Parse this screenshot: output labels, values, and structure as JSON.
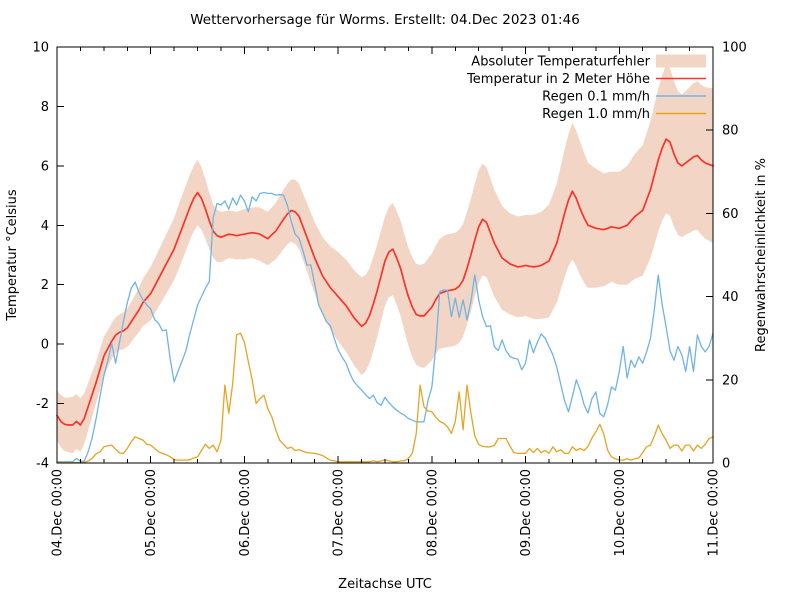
{
  "chart_data": {
    "type": "line",
    "title": "Wettervorhersage für Worms. Erstellt: 04.Dec 2023 01:46",
    "xlabel": "Zeitachse UTC",
    "ylabel_left": "Temperatur °Celsius",
    "ylabel_right": "Regenwahrscheinlichkeit in %",
    "grid": false,
    "legend_position": "top-right-inside",
    "background_color": "#ffffff",
    "axis_color": "#000000",
    "x_axis": {
      "total_hours": 168,
      "major_tick_hours": 24,
      "minor_tick_hours": 6,
      "tick_labels": [
        "04.Dec 00:00",
        "05.Dec 00:00",
        "06.Dec 00:00",
        "07.Dec 00:00",
        "08.Dec 00:00",
        "09.Dec 00:00",
        "10.Dec 00:00",
        "11.Dec 00:00"
      ]
    },
    "y_left_range": [
      -4,
      10
    ],
    "y_left_ticks": [
      -4,
      -2,
      0,
      2,
      4,
      6,
      8,
      10
    ],
    "y_right_range": [
      0,
      100
    ],
    "y_right_ticks": [
      0,
      20,
      40,
      60,
      80,
      100
    ],
    "series": [
      {
        "name": "Absoluter Temperaturfehler",
        "type": "band",
        "axis": "left",
        "color": "#f3d5c5",
        "center_series": "Temperatur in 2 Meter Höhe",
        "half_width_hourly": [
          0.85,
          0.88,
          0.9,
          0.92,
          0.95,
          0.92,
          0.9,
          0.85,
          0.8,
          0.75,
          0.7,
          0.68,
          0.65,
          0.62,
          0.6,
          0.6,
          0.6,
          0.62,
          0.65,
          0.68,
          0.7,
          0.75,
          0.8,
          0.85,
          0.9,
          0.92,
          0.95,
          0.98,
          1.0,
          1.02,
          1.05,
          1.08,
          1.1,
          1.1,
          1.1,
          1.1,
          1.1,
          1.05,
          1.0,
          0.95,
          0.9,
          0.88,
          0.85,
          0.82,
          0.8,
          0.8,
          0.8,
          0.82,
          0.85,
          0.85,
          0.85,
          0.88,
          0.9,
          0.9,
          0.9,
          0.92,
          0.95,
          0.98,
          1.0,
          1.02,
          1.05,
          1.08,
          1.1,
          1.12,
          1.15,
          1.18,
          1.2,
          1.25,
          1.3,
          1.35,
          1.4,
          1.45,
          1.5,
          1.52,
          1.55,
          1.58,
          1.6,
          1.62,
          1.65,
          1.62,
          1.6,
          1.58,
          1.55,
          1.52,
          1.5,
          1.52,
          1.55,
          1.58,
          1.6,
          1.62,
          1.65,
          1.68,
          1.7,
          1.72,
          1.75,
          1.78,
          1.8,
          1.82,
          1.85,
          1.88,
          1.9,
          1.9,
          1.9,
          1.9,
          1.9,
          1.9,
          1.9,
          1.88,
          1.9,
          1.88,
          1.85,
          1.82,
          1.8,
          1.78,
          1.75,
          1.72,
          1.7,
          1.7,
          1.7,
          1.7,
          1.7,
          1.72,
          1.75,
          1.78,
          1.8,
          1.85,
          1.9,
          1.95,
          2.0,
          2.08,
          2.15,
          2.22,
          2.3,
          2.28,
          2.25,
          2.18,
          2.1,
          2.05,
          2.0,
          1.95,
          1.9,
          1.88,
          1.85,
          1.88,
          1.9,
          1.95,
          2.0,
          2.05,
          2.1,
          2.15,
          2.2,
          2.25,
          2.3,
          2.35,
          2.4,
          2.45,
          2.5,
          2.48,
          2.45,
          2.42,
          2.4,
          2.42,
          2.45,
          2.48,
          2.5,
          2.52,
          2.55,
          2.58,
          2.6
        ]
      },
      {
        "name": "Temperatur in 2 Meter Höhe",
        "type": "line",
        "axis": "left",
        "color": "#f6352b",
        "stroke_width": 1.7,
        "values_hourly": [
          -2.4,
          -2.6,
          -2.7,
          -2.72,
          -2.72,
          -2.6,
          -2.72,
          -2.5,
          -2.1,
          -1.7,
          -1.3,
          -0.85,
          -0.4,
          -0.15,
          0.1,
          0.3,
          0.4,
          0.45,
          0.55,
          0.75,
          0.95,
          1.15,
          1.4,
          1.55,
          1.7,
          1.95,
          2.2,
          2.45,
          2.7,
          2.95,
          3.2,
          3.55,
          3.9,
          4.25,
          4.6,
          4.9,
          5.1,
          4.9,
          4.55,
          4.15,
          3.8,
          3.65,
          3.6,
          3.65,
          3.7,
          3.68,
          3.65,
          3.68,
          3.7,
          3.73,
          3.75,
          3.73,
          3.7,
          3.62,
          3.55,
          3.68,
          3.8,
          4.0,
          4.2,
          4.38,
          4.5,
          4.45,
          4.3,
          3.95,
          3.6,
          3.25,
          2.9,
          2.6,
          2.3,
          2.1,
          1.9,
          1.75,
          1.6,
          1.45,
          1.3,
          1.1,
          0.9,
          0.75,
          0.6,
          0.7,
          0.95,
          1.35,
          1.8,
          2.3,
          2.8,
          3.1,
          3.2,
          2.9,
          2.55,
          2.05,
          1.6,
          1.25,
          1.0,
          0.95,
          0.95,
          1.1,
          1.25,
          1.5,
          1.7,
          1.75,
          1.8,
          1.82,
          1.85,
          1.95,
          2.15,
          2.55,
          3.0,
          3.5,
          3.95,
          4.2,
          4.1,
          3.75,
          3.4,
          3.15,
          2.9,
          2.8,
          2.7,
          2.65,
          2.6,
          2.62,
          2.65,
          2.62,
          2.6,
          2.62,
          2.65,
          2.72,
          2.8,
          3.1,
          3.4,
          3.9,
          4.4,
          4.85,
          5.15,
          4.9,
          4.55,
          4.25,
          4.0,
          3.95,
          3.9,
          3.88,
          3.85,
          3.9,
          3.95,
          3.92,
          3.9,
          3.95,
          4.0,
          4.15,
          4.3,
          4.4,
          4.5,
          4.85,
          5.2,
          5.7,
          6.2,
          6.6,
          6.9,
          6.8,
          6.4,
          6.1,
          6.0,
          6.1,
          6.2,
          6.3,
          6.35,
          6.2,
          6.1,
          6.05,
          6.0
        ]
      },
      {
        "name": "Regen 0.1 mm/h",
        "type": "line",
        "axis": "right",
        "color": "#70b4e5",
        "stroke_width": 1.3,
        "values_hourly": [
          0.3,
          0.3,
          0.3,
          0.3,
          0.3,
          1.1,
          0.4,
          0.5,
          2.7,
          6,
          10.5,
          16,
          21,
          24.5,
          28.8,
          24,
          29,
          34,
          38.5,
          42,
          43.5,
          41,
          39.2,
          38,
          37,
          34.5,
          33.6,
          31.8,
          32,
          25,
          19.5,
          22,
          24.5,
          27,
          31,
          34.5,
          38,
          40,
          42,
          43.6,
          59,
          62.4,
          62,
          63,
          61,
          63.7,
          62,
          64.4,
          63,
          60.4,
          64,
          63,
          64.8,
          65,
          64.8,
          64.8,
          64.4,
          64.5,
          64.4,
          62,
          58,
          55,
          54,
          51,
          47.6,
          47.6,
          43,
          38,
          36,
          34,
          33,
          30,
          27.2,
          25.5,
          24,
          21.5,
          19.6,
          18.5,
          17.5,
          16.5,
          15.5,
          16.3,
          14.5,
          13.9,
          15.8,
          14.5,
          13.5,
          12.7,
          12,
          11.5,
          10.7,
          10.3,
          9.9,
          9.9,
          9.9,
          15,
          18.3,
          28,
          41.2,
          41.6,
          41.5,
          35.2,
          39.6,
          35,
          39.2,
          34.4,
          38.8,
          45.2,
          39.2,
          35.2,
          32.8,
          33,
          28,
          27,
          29.6,
          27,
          25.6,
          25.2,
          25,
          22.4,
          24,
          29.6,
          26.5,
          29,
          31,
          30,
          28,
          26,
          23,
          19,
          15,
          12.3,
          16,
          20,
          17.5,
          14,
          12,
          15.5,
          17.1,
          11.9,
          11.1,
          14,
          18.3,
          17.5,
          22,
          28,
          20.4,
          24.7,
          23,
          25.5,
          24,
          26.7,
          30,
          37,
          45.2,
          38,
          32.8,
          27,
          24.7,
          28,
          26,
          22,
          28,
          22,
          30.8,
          28,
          26.7,
          28,
          31.2
        ]
      },
      {
        "name": "Regen 1.0 mm/h",
        "type": "line",
        "axis": "right",
        "color": "#e5a423",
        "stroke_width": 1.3,
        "values_hourly": [
          0.1,
          0.1,
          0.1,
          0.1,
          0.1,
          0.1,
          0.1,
          0.2,
          0.5,
          1.1,
          2.2,
          2.7,
          3.9,
          4.1,
          4.3,
          3.3,
          2.4,
          2.3,
          3.5,
          5.1,
          6.3,
          5.9,
          5.5,
          4.5,
          4.3,
          3.5,
          2.7,
          2.3,
          2.0,
          1.5,
          0.8,
          0.7,
          0.7,
          0.7,
          0.8,
          1.2,
          1.5,
          3.0,
          4.5,
          3.5,
          4.3,
          2.7,
          5.5,
          18.7,
          11.9,
          19.1,
          30.8,
          31.2,
          29,
          24.4,
          20,
          14.3,
          15.5,
          16.3,
          13,
          11.1,
          8,
          5.5,
          4.5,
          3.5,
          3.8,
          3.0,
          3.2,
          2.8,
          2.5,
          2.4,
          2.3,
          2.1,
          1.8,
          1.2,
          0.7,
          0.5,
          0.3,
          0.3,
          0.3,
          0.3,
          0.3,
          0.3,
          0.3,
          0.3,
          0.3,
          0.5,
          0.3,
          0.5,
          0.8,
          0.5,
          0.3,
          0.3,
          0.5,
          0.5,
          1.1,
          2.3,
          7,
          18.7,
          13.5,
          12.5,
          12.3,
          11,
          10,
          9.6,
          8.7,
          7.1,
          10,
          17.1,
          8,
          18.7,
          12,
          6.5,
          4.5,
          4,
          3.9,
          3.9,
          4.2,
          5.9,
          5.9,
          5.9,
          4,
          2.5,
          2.3,
          2.3,
          2.3,
          3.5,
          2.5,
          3.5,
          2.5,
          3,
          2.3,
          3.9,
          2.7,
          3.2,
          2.3,
          2.3,
          3.9,
          3,
          3.5,
          3,
          4,
          6,
          7.5,
          9.3,
          7,
          3.1,
          1.5,
          1,
          0.7,
          0.7,
          1,
          0.7,
          1,
          1.2,
          2.5,
          3.9,
          4.3,
          6.5,
          9.1,
          7,
          5.5,
          3.5,
          4.3,
          4.3,
          2.9,
          4.3,
          4.3,
          2.9,
          4.3,
          3.5,
          4.5,
          5.9,
          6.3
        ]
      }
    ],
    "legend": {
      "entries": [
        {
          "label": "Absoluter Temperaturfehler",
          "swatch": "band"
        },
        {
          "label": "Temperatur in 2 Meter Höhe",
          "swatch": "line"
        },
        {
          "label": "Regen 0.1 mm/h",
          "swatch": "line"
        },
        {
          "label": "Regen 1.0 mm/h",
          "swatch": "line"
        }
      ]
    }
  }
}
